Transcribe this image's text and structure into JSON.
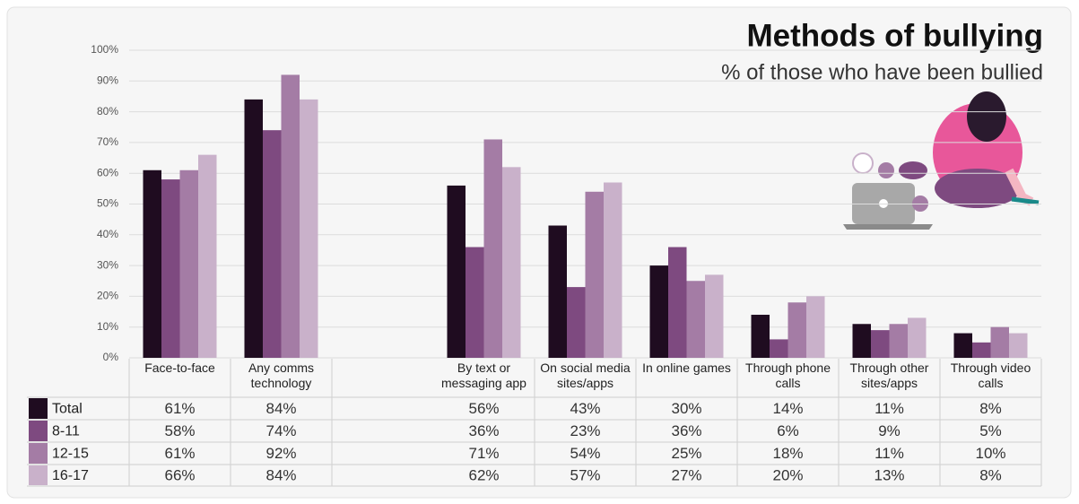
{
  "chart_data": {
    "type": "bar",
    "title": "Methods of bullying",
    "subtitle": "% of those who have been bullied",
    "categories": [
      "Face-to-face",
      "Any comms technology",
      null,
      "By text or messaging app",
      "On social media sites/apps",
      "In online games",
      "Through phone calls",
      "Through other sites/apps",
      "Through video calls"
    ],
    "series": [
      {
        "name": "Total",
        "color": "#1f0c20",
        "values": [
          61,
          84,
          null,
          56,
          43,
          30,
          14,
          11,
          8
        ],
        "value_labels": [
          "61%",
          "84%",
          null,
          "56%",
          "43%",
          "30%",
          "14%",
          "11%",
          "8%"
        ]
      },
      {
        "name": "8-11",
        "color": "#7e4a80",
        "values": [
          58,
          74,
          null,
          36,
          23,
          36,
          6,
          9,
          5
        ],
        "value_labels": [
          "58%",
          "74%",
          null,
          "36%",
          "23%",
          "36%",
          "6%",
          "9%",
          "5%"
        ]
      },
      {
        "name": "12-15",
        "color": "#a47ca5",
        "values": [
          61,
          92,
          null,
          71,
          54,
          25,
          18,
          11,
          10
        ],
        "value_labels": [
          "61%",
          "92%",
          null,
          "71%",
          "54%",
          "25%",
          "18%",
          "11%",
          "10%"
        ]
      },
      {
        "name": "16-17",
        "color": "#c9b1ca",
        "values": [
          66,
          84,
          null,
          62,
          57,
          27,
          20,
          13,
          8
        ],
        "value_labels": [
          "66%",
          "84%",
          null,
          "62%",
          "57%",
          "27%",
          "20%",
          "13%",
          "8%"
        ]
      }
    ],
    "ylim": [
      0,
      100
    ],
    "yticks": [
      {
        "value": 0,
        "label": "0%"
      },
      {
        "value": 10,
        "label": "10%"
      },
      {
        "value": 20,
        "label": "20%"
      },
      {
        "value": 30,
        "label": "30%"
      },
      {
        "value": 40,
        "label": "40%"
      },
      {
        "value": 50,
        "label": "50%"
      },
      {
        "value": 60,
        "label": "60%"
      },
      {
        "value": 70,
        "label": "70%"
      },
      {
        "value": 80,
        "label": "80%"
      },
      {
        "value": 90,
        "label": "90%"
      },
      {
        "value": 100,
        "label": "100%"
      }
    ],
    "grid": true
  }
}
